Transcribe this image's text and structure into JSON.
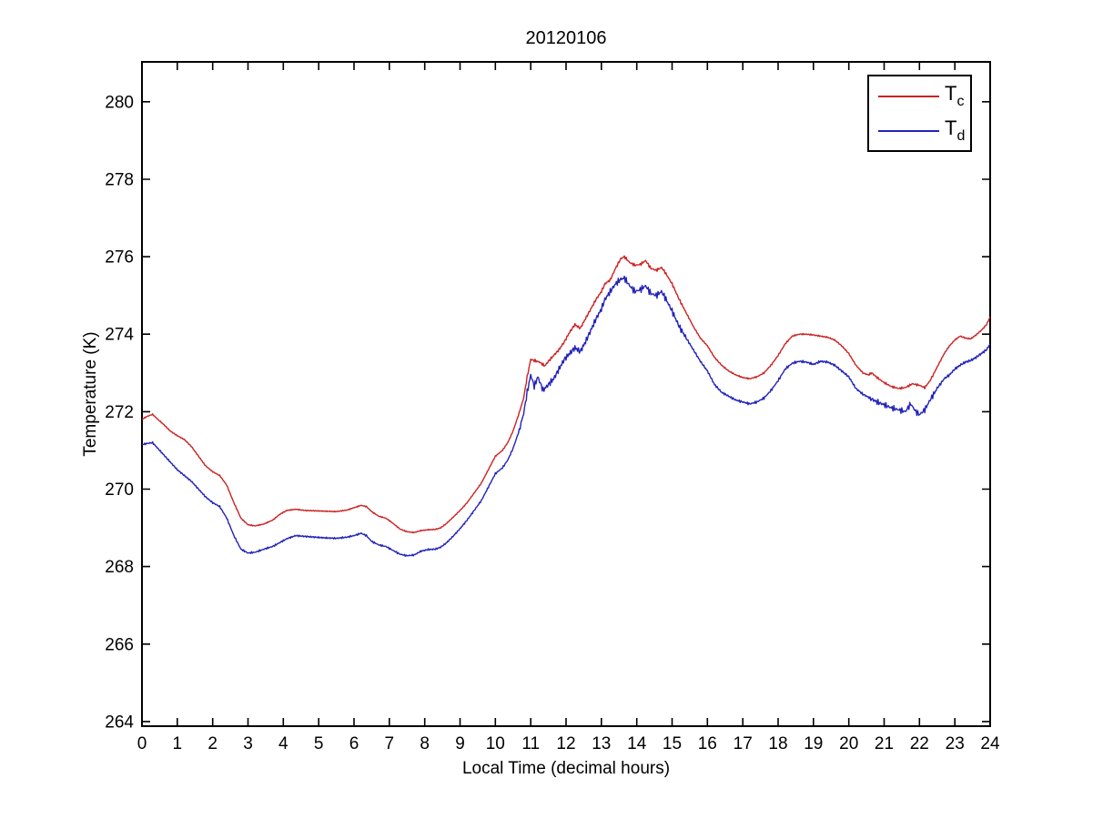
{
  "figure": {
    "background": "#ffffff",
    "frame_color": "#000000"
  },
  "chart_data": {
    "type": "line",
    "title": "20120106",
    "xlabel": "Local Time (decimal hours)",
    "ylabel": "Temperature (K)",
    "xlim": [
      0,
      24
    ],
    "ylim": [
      263.88,
      281.03
    ],
    "xticks": [
      0,
      1,
      2,
      3,
      4,
      5,
      6,
      7,
      8,
      9,
      10,
      11,
      12,
      13,
      14,
      15,
      16,
      17,
      18,
      19,
      20,
      21,
      22,
      23,
      24
    ],
    "yticks": [
      264,
      266,
      268,
      270,
      272,
      274,
      276,
      278,
      280
    ],
    "grid": false,
    "frame_box": true,
    "tick_direction": "in",
    "legend": {
      "position": "top-right",
      "entries": [
        {
          "label_main": "T",
          "label_sub": "c",
          "color": "#cc2222"
        },
        {
          "label_main": "T",
          "label_sub": "d",
          "color": "#2222bb"
        }
      ]
    },
    "series": [
      {
        "name": "Tc",
        "color": "#cc2222",
        "noise_windows": [
          [
            0,
            10.8,
            0.015
          ],
          [
            10.8,
            15.3,
            0.04
          ],
          [
            15.3,
            20.5,
            0.02
          ],
          [
            20.5,
            22.4,
            0.03
          ],
          [
            22.4,
            24,
            0.02
          ]
        ],
        "points": [
          [
            0,
            271.8
          ],
          [
            0.15,
            271.88
          ],
          [
            0.3,
            271.93
          ],
          [
            0.45,
            271.8
          ],
          [
            0.6,
            271.68
          ],
          [
            0.8,
            271.5
          ],
          [
            1,
            271.38
          ],
          [
            1.2,
            271.28
          ],
          [
            1.4,
            271.1
          ],
          [
            1.6,
            270.85
          ],
          [
            1.8,
            270.6
          ],
          [
            2,
            270.45
          ],
          [
            2.2,
            270.35
          ],
          [
            2.4,
            270.1
          ],
          [
            2.6,
            269.65
          ],
          [
            2.8,
            269.25
          ],
          [
            3,
            269.08
          ],
          [
            3.2,
            269.05
          ],
          [
            3.45,
            269.1
          ],
          [
            3.7,
            269.2
          ],
          [
            3.9,
            269.35
          ],
          [
            4.1,
            269.45
          ],
          [
            4.35,
            269.48
          ],
          [
            4.6,
            269.45
          ],
          [
            4.9,
            269.44
          ],
          [
            5.2,
            269.43
          ],
          [
            5.5,
            269.42
          ],
          [
            5.8,
            269.46
          ],
          [
            6,
            269.52
          ],
          [
            6.2,
            269.58
          ],
          [
            6.35,
            269.55
          ],
          [
            6.5,
            269.42
          ],
          [
            6.7,
            269.3
          ],
          [
            6.9,
            269.25
          ],
          [
            7.1,
            269.12
          ],
          [
            7.3,
            268.97
          ],
          [
            7.5,
            268.9
          ],
          [
            7.7,
            268.88
          ],
          [
            7.9,
            268.93
          ],
          [
            8.1,
            268.95
          ],
          [
            8.3,
            268.96
          ],
          [
            8.45,
            269
          ],
          [
            8.6,
            269.1
          ],
          [
            8.8,
            269.27
          ],
          [
            9,
            269.45
          ],
          [
            9.2,
            269.65
          ],
          [
            9.4,
            269.9
          ],
          [
            9.6,
            270.15
          ],
          [
            9.8,
            270.5
          ],
          [
            10,
            270.85
          ],
          [
            10.2,
            271
          ],
          [
            10.35,
            271.2
          ],
          [
            10.5,
            271.5
          ],
          [
            10.65,
            271.9
          ],
          [
            10.8,
            272.35
          ],
          [
            10.9,
            272.9
          ],
          [
            11,
            273.35
          ],
          [
            11.1,
            273.32
          ],
          [
            11.25,
            273.28
          ],
          [
            11.4,
            273.18
          ],
          [
            11.5,
            273.3
          ],
          [
            11.65,
            273.45
          ],
          [
            11.8,
            273.6
          ],
          [
            11.95,
            273.8
          ],
          [
            12.1,
            274.05
          ],
          [
            12.25,
            274.25
          ],
          [
            12.4,
            274.15
          ],
          [
            12.55,
            274.4
          ],
          [
            12.7,
            274.65
          ],
          [
            12.85,
            274.9
          ],
          [
            13,
            275.1
          ],
          [
            13.1,
            275.3
          ],
          [
            13.25,
            275.4
          ],
          [
            13.4,
            275.7
          ],
          [
            13.55,
            275.95
          ],
          [
            13.65,
            276
          ],
          [
            13.8,
            275.85
          ],
          [
            13.95,
            275.78
          ],
          [
            14.1,
            275.8
          ],
          [
            14.25,
            275.9
          ],
          [
            14.4,
            275.7
          ],
          [
            14.55,
            275.65
          ],
          [
            14.7,
            275.72
          ],
          [
            14.8,
            275.6
          ],
          [
            15,
            275.3
          ],
          [
            15.2,
            274.9
          ],
          [
            15.4,
            274.55
          ],
          [
            15.6,
            274.2
          ],
          [
            15.8,
            273.9
          ],
          [
            16,
            273.7
          ],
          [
            16.2,
            273.4
          ],
          [
            16.4,
            273.2
          ],
          [
            16.6,
            273.05
          ],
          [
            16.8,
            272.95
          ],
          [
            17,
            272.88
          ],
          [
            17.2,
            272.85
          ],
          [
            17.4,
            272.9
          ],
          [
            17.6,
            273
          ],
          [
            17.8,
            273.2
          ],
          [
            18,
            273.45
          ],
          [
            18.2,
            273.75
          ],
          [
            18.4,
            273.95
          ],
          [
            18.6,
            274
          ],
          [
            18.8,
            274
          ],
          [
            19,
            273.98
          ],
          [
            19.2,
            273.95
          ],
          [
            19.4,
            273.92
          ],
          [
            19.6,
            273.85
          ],
          [
            19.8,
            273.7
          ],
          [
            20,
            273.5
          ],
          [
            20.2,
            273.2
          ],
          [
            20.4,
            273
          ],
          [
            20.55,
            272.95
          ],
          [
            20.65,
            273
          ],
          [
            20.8,
            272.88
          ],
          [
            21,
            272.75
          ],
          [
            21.2,
            272.65
          ],
          [
            21.4,
            272.6
          ],
          [
            21.6,
            272.62
          ],
          [
            21.8,
            272.72
          ],
          [
            22,
            272.68
          ],
          [
            22.15,
            272.62
          ],
          [
            22.3,
            272.8
          ],
          [
            22.5,
            273.15
          ],
          [
            22.7,
            273.5
          ],
          [
            22.85,
            273.7
          ],
          [
            23,
            273.85
          ],
          [
            23.15,
            273.95
          ],
          [
            23.3,
            273.9
          ],
          [
            23.45,
            273.88
          ],
          [
            23.6,
            273.98
          ],
          [
            23.75,
            274.1
          ],
          [
            23.9,
            274.25
          ],
          [
            24,
            274.45
          ]
        ]
      },
      {
        "name": "Td",
        "color": "#2222bb",
        "noise_windows": [
          [
            0,
            10.7,
            0.025
          ],
          [
            10.7,
            15.4,
            0.09
          ],
          [
            15.4,
            20.6,
            0.035
          ],
          [
            20.6,
            22.5,
            0.08
          ],
          [
            22.5,
            24,
            0.04
          ]
        ],
        "points": [
          [
            0,
            271.15
          ],
          [
            0.15,
            271.18
          ],
          [
            0.3,
            271.2
          ],
          [
            0.45,
            271.05
          ],
          [
            0.6,
            270.9
          ],
          [
            0.8,
            270.7
          ],
          [
            1,
            270.5
          ],
          [
            1.2,
            270.35
          ],
          [
            1.4,
            270.2
          ],
          [
            1.6,
            270
          ],
          [
            1.8,
            269.8
          ],
          [
            2,
            269.65
          ],
          [
            2.2,
            269.55
          ],
          [
            2.4,
            269.25
          ],
          [
            2.6,
            268.8
          ],
          [
            2.8,
            268.45
          ],
          [
            3,
            268.35
          ],
          [
            3.2,
            268.37
          ],
          [
            3.45,
            268.45
          ],
          [
            3.7,
            268.52
          ],
          [
            3.9,
            268.62
          ],
          [
            4.1,
            268.72
          ],
          [
            4.35,
            268.8
          ],
          [
            4.6,
            268.78
          ],
          [
            4.9,
            268.76
          ],
          [
            5.2,
            268.74
          ],
          [
            5.5,
            268.73
          ],
          [
            5.8,
            268.76
          ],
          [
            6,
            268.8
          ],
          [
            6.2,
            268.86
          ],
          [
            6.35,
            268.8
          ],
          [
            6.5,
            268.65
          ],
          [
            6.7,
            268.56
          ],
          [
            6.9,
            268.52
          ],
          [
            7.1,
            268.42
          ],
          [
            7.3,
            268.32
          ],
          [
            7.5,
            268.28
          ],
          [
            7.7,
            268.3
          ],
          [
            7.9,
            268.4
          ],
          [
            8.1,
            268.44
          ],
          [
            8.3,
            268.45
          ],
          [
            8.45,
            268.5
          ],
          [
            8.6,
            268.6
          ],
          [
            8.8,
            268.78
          ],
          [
            9,
            268.98
          ],
          [
            9.2,
            269.2
          ],
          [
            9.4,
            269.45
          ],
          [
            9.6,
            269.7
          ],
          [
            9.8,
            270.05
          ],
          [
            10,
            270.4
          ],
          [
            10.2,
            270.55
          ],
          [
            10.35,
            270.75
          ],
          [
            10.5,
            271.05
          ],
          [
            10.65,
            271.45
          ],
          [
            10.8,
            271.95
          ],
          [
            10.9,
            272.5
          ],
          [
            11,
            272.95
          ],
          [
            11.1,
            272.65
          ],
          [
            11.2,
            272.9
          ],
          [
            11.35,
            272.55
          ],
          [
            11.5,
            272.7
          ],
          [
            11.65,
            272.85
          ],
          [
            11.8,
            273.1
          ],
          [
            11.95,
            273.35
          ],
          [
            12.1,
            273.5
          ],
          [
            12.25,
            273.65
          ],
          [
            12.4,
            273.55
          ],
          [
            12.55,
            273.8
          ],
          [
            12.7,
            274.1
          ],
          [
            12.85,
            274.4
          ],
          [
            13,
            274.65
          ],
          [
            13.1,
            274.9
          ],
          [
            13.25,
            275.1
          ],
          [
            13.4,
            275.3
          ],
          [
            13.55,
            275.42
          ],
          [
            13.65,
            275.45
          ],
          [
            13.8,
            275.25
          ],
          [
            13.95,
            275.1
          ],
          [
            14.1,
            275.15
          ],
          [
            14.25,
            275.25
          ],
          [
            14.4,
            275.05
          ],
          [
            14.55,
            275
          ],
          [
            14.7,
            275.1
          ],
          [
            14.8,
            274.95
          ],
          [
            15,
            274.6
          ],
          [
            15.2,
            274.2
          ],
          [
            15.4,
            273.9
          ],
          [
            15.6,
            273.6
          ],
          [
            15.8,
            273.3
          ],
          [
            16,
            273.05
          ],
          [
            16.2,
            272.7
          ],
          [
            16.4,
            272.5
          ],
          [
            16.6,
            272.4
          ],
          [
            16.8,
            272.3
          ],
          [
            17,
            272.25
          ],
          [
            17.2,
            272.2
          ],
          [
            17.4,
            272.25
          ],
          [
            17.6,
            272.35
          ],
          [
            17.8,
            272.55
          ],
          [
            18,
            272.8
          ],
          [
            18.2,
            273.1
          ],
          [
            18.4,
            273.25
          ],
          [
            18.6,
            273.3
          ],
          [
            18.8,
            273.28
          ],
          [
            19,
            273.22
          ],
          [
            19.2,
            273.3
          ],
          [
            19.4,
            273.28
          ],
          [
            19.6,
            273.2
          ],
          [
            19.8,
            273.05
          ],
          [
            20,
            272.9
          ],
          [
            20.2,
            272.6
          ],
          [
            20.4,
            272.45
          ],
          [
            20.6,
            272.35
          ],
          [
            20.8,
            272.25
          ],
          [
            21,
            272.18
          ],
          [
            21.2,
            272.1
          ],
          [
            21.4,
            272.05
          ],
          [
            21.6,
            272
          ],
          [
            21.75,
            272.2
          ],
          [
            21.9,
            272
          ],
          [
            22,
            271.92
          ],
          [
            22.15,
            272.05
          ],
          [
            22.3,
            272.3
          ],
          [
            22.5,
            272.6
          ],
          [
            22.7,
            272.85
          ],
          [
            22.85,
            272.95
          ],
          [
            23,
            273.1
          ],
          [
            23.15,
            273.2
          ],
          [
            23.3,
            273.28
          ],
          [
            23.45,
            273.32
          ],
          [
            23.6,
            273.4
          ],
          [
            23.75,
            273.5
          ],
          [
            23.9,
            273.6
          ],
          [
            24,
            273.75
          ]
        ]
      }
    ]
  }
}
